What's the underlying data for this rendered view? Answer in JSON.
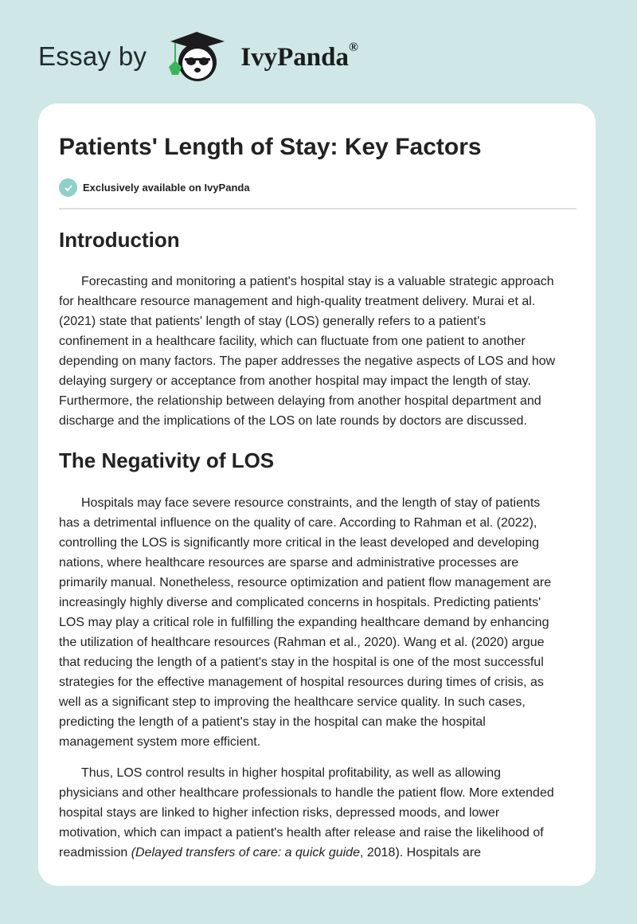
{
  "brand": {
    "prefix": "Essay by",
    "name": "IvyPanda",
    "reg": "®"
  },
  "colors": {
    "background": "#cfe7e7",
    "check": "#8fd0c9",
    "ivy_leaf": "#3cb55a"
  },
  "title": "Patients' Length of Stay: Key Factors",
  "badge": {
    "icon": "check-circle-icon",
    "text": "Exclusively available on IvyPanda"
  },
  "sections": [
    {
      "heading": "Introduction",
      "paragraphs": [
        [
          "Forecasting and monitoring a patient's hospital stay is a valuable strategic approach",
          "for healthcare resource management and high-quality treatment delivery. Murai et al.",
          "(2021) state that patients' length of stay (LOS) generally refers to a patient's",
          "confinement in a healthcare facility, which can fluctuate from one patient to another",
          "depending on many factors. The paper addresses the negative aspects of LOS and how",
          "delaying surgery or acceptance from another hospital may impact the length of stay.",
          "Furthermore, the relationship between delaying from another hospital department and",
          "discharge and the implications of the LOS on late rounds by doctors are discussed."
        ]
      ]
    },
    {
      "heading": "The Negativity of LOS",
      "paragraphs": [
        [
          "Hospitals may face severe resource constraints, and the length of stay of patients",
          "has a detrimental influence on the quality of care. According to Rahman et al. (2022),",
          "controlling the LOS is significantly more critical in the least developed and developing",
          "nations, where healthcare resources are sparse and administrative processes are",
          "primarily manual. Nonetheless, resource optimization and patient flow management are",
          "increasingly highly diverse and complicated concerns in hospitals. Predicting patients'",
          "LOS may play a critical role in fulfilling the expanding healthcare demand by enhancing",
          "the utilization of healthcare resources (Rahman et al., 2020). Wang et al. (2020) argue",
          "that reducing the length of a patient's stay in the hospital is one of the most successful",
          "strategies for the effective management of hospital resources during times of crisis, as",
          "well as a significant step to improving the healthcare service quality. In such cases,",
          "predicting the length of a patient's stay in the hospital can make the hospital",
          "management system more efficient."
        ],
        [
          "Thus, LOS control results in higher hospital profitability, as well as allowing",
          "physicians and other healthcare professionals to handle the patient flow. More extended",
          "hospital stays are linked to higher infection risks, depressed moods, and lower",
          "motivation, which can impact a patient's health after release and raise the likelihood of"
        ]
      ]
    }
  ],
  "last_line": {
    "before": "readmission ",
    "italic": "(Delayed transfers of care: a quick guide",
    "after": ", 2018). Hospitals are"
  }
}
